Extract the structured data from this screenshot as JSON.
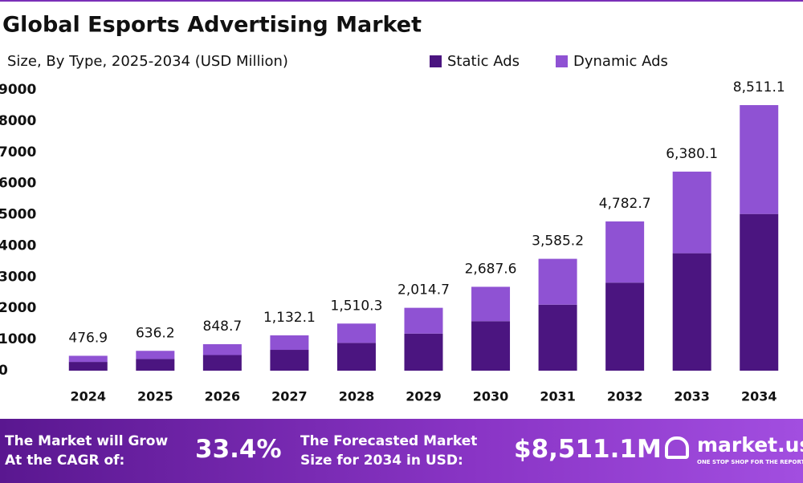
{
  "chart_data": {
    "type": "stacked-bar",
    "title": "Global Esports Advertising Market",
    "subtitle": "Size, By Type, 2025-2034 (USD Million)",
    "categories": [
      "2024",
      "2025",
      "2026",
      "2027",
      "2028",
      "2029",
      "2030",
      "2031",
      "2032",
      "2033",
      "2034"
    ],
    "series": [
      {
        "name": "Static Ads",
        "color": "#4b1580",
        "values": [
          281,
          375,
          501,
          668,
          891,
          1189,
          1586,
          2115,
          2822,
          3764,
          5022
        ]
      },
      {
        "name": "Dynamic Ads",
        "color": "#8f52d3",
        "values": [
          196,
          261,
          348,
          464,
          619,
          826,
          1102,
          1470,
          1961,
          2616,
          3489
        ]
      }
    ],
    "totals": [
      476.9,
      636.2,
      848.7,
      1132.1,
      1510.3,
      2014.7,
      2687.6,
      3585.2,
      4782.7,
      6380.1,
      8511.1
    ],
    "total_labels": [
      "476.9",
      "636.2",
      "848.7",
      "1,132.1",
      "1,510.3",
      "2,014.7",
      "2,687.6",
      "3,585.2",
      "4,782.7",
      "6,380.1",
      "8,511.1"
    ],
    "ylim": [
      0,
      9000
    ],
    "yticks": [
      0,
      1000,
      2000,
      3000,
      4000,
      5000,
      6000,
      7000,
      8000,
      9000
    ],
    "legend": "top-right"
  },
  "footer": {
    "cagr_text": [
      "The Market will Grow",
      "At the CAGR of:"
    ],
    "cagr_value": "33.4%",
    "forecast_text": [
      "The Forecasted Market",
      "Size for 2034 in USD:"
    ],
    "forecast_value": "$8,511.1M",
    "brand": "market.us",
    "tagline": "ONE STOP SHOP FOR THE REPORTS"
  }
}
